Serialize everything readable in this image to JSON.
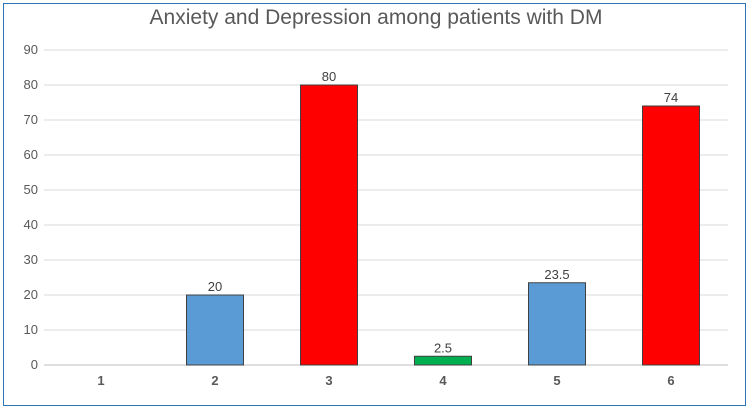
{
  "chart_data": {
    "type": "bar",
    "title": "Anxiety and Depression among patients with DM",
    "xlabel": "",
    "ylabel": "",
    "categories": [
      "1",
      "2",
      "3",
      "4",
      "5",
      "6"
    ],
    "values": [
      0,
      20,
      80,
      2.5,
      23.5,
      74
    ],
    "data_labels": [
      "",
      "20",
      "80",
      "2.5",
      "23.5",
      "74"
    ],
    "bar_colors": [
      "#5b9bd5",
      "#5b9bd5",
      "#ff0000",
      "#00b050",
      "#5b9bd5",
      "#ff0000"
    ],
    "yticks": [
      0,
      10,
      20,
      30,
      40,
      50,
      60,
      70,
      80,
      90
    ],
    "ylim": [
      0,
      90
    ],
    "grid": true,
    "legend": "none"
  }
}
